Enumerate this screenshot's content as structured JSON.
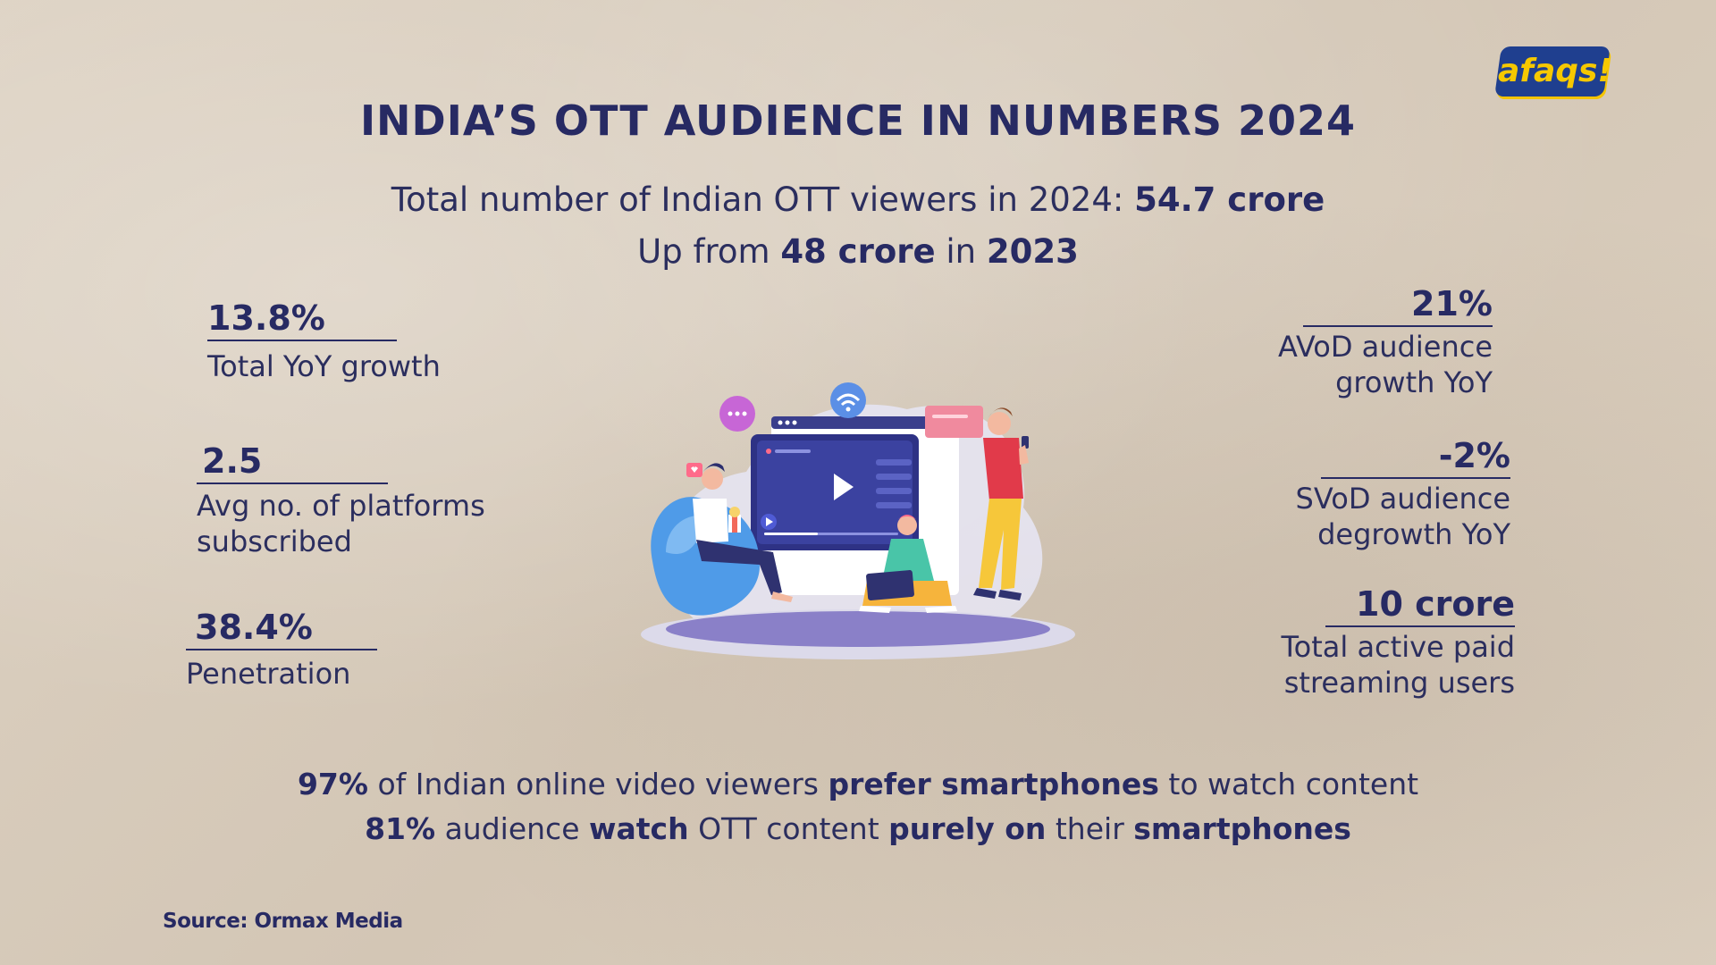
{
  "logo": {
    "text": "afaqs!"
  },
  "title": "INDIA’S OTT AUDIENCE IN NUMBERS 2024",
  "headline": {
    "line1_prefix": "Total number of Indian OTT viewers  in 2024: ",
    "line1_value": "54.7 crore",
    "line2_prefix": "Up from ",
    "line2_value": "48 crore",
    "line2_mid": " in ",
    "line2_year": "2023"
  },
  "left_stats": [
    {
      "value": "13.8%",
      "label_lines": [
        "Total YoY growth"
      ]
    },
    {
      "value": "2.5",
      "label_lines": [
        "Avg no. of platforms",
        "subscribed"
      ]
    },
    {
      "value": "38.4%",
      "label_lines": [
        "Penetration"
      ]
    }
  ],
  "right_stats": [
    {
      "value": "21%",
      "label_lines": [
        "AVoD audience",
        "growth YoY"
      ]
    },
    {
      "value": "-2%",
      "label_lines": [
        "SVoD audience",
        "degrowth YoY"
      ]
    },
    {
      "value": "10 crore",
      "label_lines": [
        "Total active paid",
        "streaming users"
      ]
    }
  ],
  "bottom": {
    "line1": {
      "p1": "97%",
      "p2": " of Indian online video viewers ",
      "p3": "prefer smartphones",
      "p4": " to watch content"
    },
    "line2": {
      "p1": "81%",
      "p2": " audience ",
      "p3": "watch",
      "p4": " OTT content ",
      "p5": "purely on",
      "p6": " their ",
      "p7": "smartphones"
    }
  },
  "source": "Source: Ormax Media",
  "colors": {
    "navy": "#272a63",
    "background": "#d9cdbd",
    "logo_blue": "#1f3f8f",
    "logo_yellow": "#f6c800"
  },
  "illustration": {
    "icon": "ott-streaming-illustration-icon"
  }
}
